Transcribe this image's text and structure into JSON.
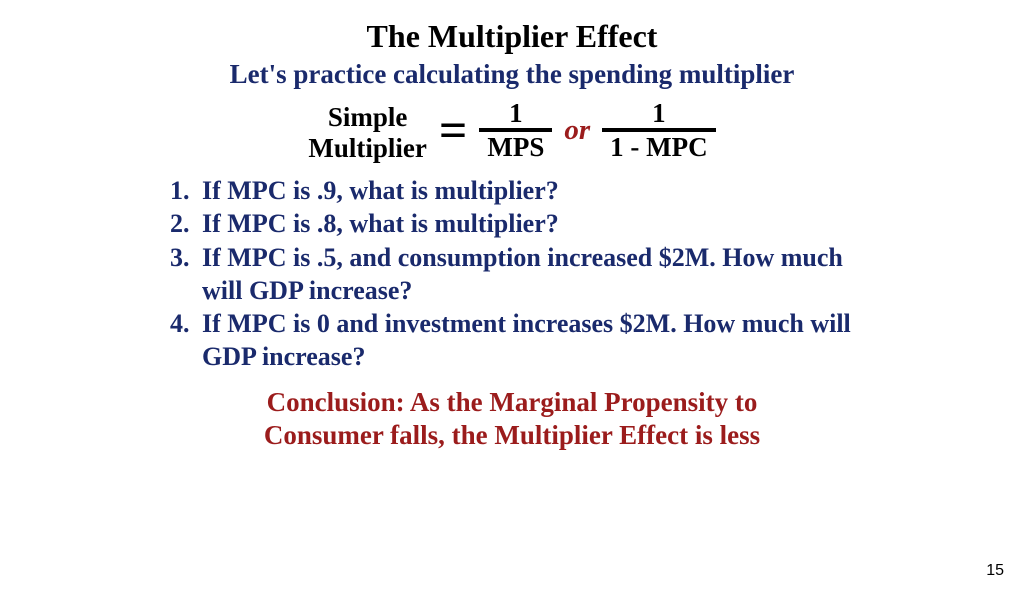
{
  "colors": {
    "title": "#000000",
    "navy": "#1a2a6c",
    "darkred": "#9b1c1c",
    "black": "#000000",
    "background": "#ffffff"
  },
  "title": "The Multiplier Effect",
  "subtitle": "Let's practice calculating the spending multiplier",
  "formula": {
    "label_line1": "Simple",
    "label_line2": "Multiplier",
    "equals": "=",
    "frac1": {
      "num": "1",
      "den": "MPS"
    },
    "or": "or",
    "frac2": {
      "num": "1",
      "den": "1 - MPC"
    }
  },
  "questions": [
    "If MPC is .9, what is multiplier?",
    "If MPC is .8, what is multiplier?",
    "If MPC is .5, and consumption increased $2M. How much will GDP increase?",
    "If MPC is 0 and investment increases $2M. How much will GDP increase?"
  ],
  "conclusion_line1": "Conclusion: As the Marginal Propensity to",
  "conclusion_line2": "Consumer falls, the Multiplier Effect is less",
  "page_number": "15",
  "typography": {
    "title_fontsize": 32,
    "body_fontsize": 27,
    "question_fontsize": 26,
    "font_family": "Times New Roman"
  }
}
